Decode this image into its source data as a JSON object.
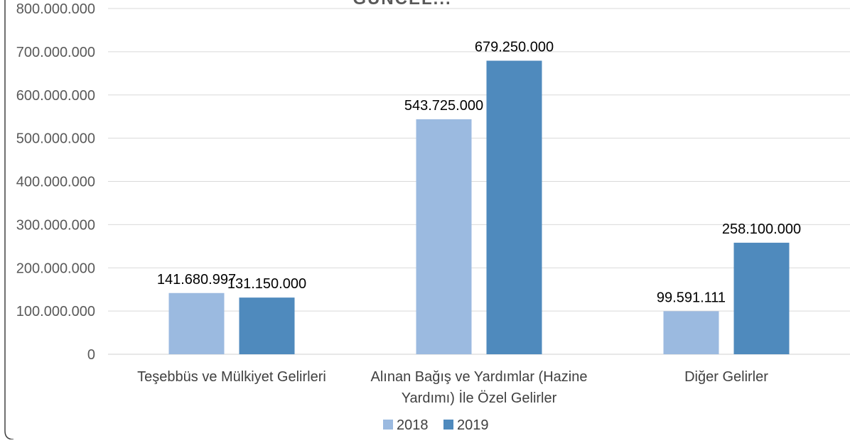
{
  "chart_data": {
    "type": "bar",
    "title": "GÜNCEL...",
    "categories": [
      [
        "Teşebbüs ve Mülkiyet Gelirleri"
      ],
      [
        "Alınan Bağış ve Yardımlar  (Hazine",
        "Yardımı) İle Özel Gelirler"
      ],
      [
        "Diğer Gelirler"
      ]
    ],
    "series": [
      {
        "name": "2018",
        "color": "#9bbae0",
        "values": [
          141680997,
          543725000,
          99591111
        ],
        "labels": [
          "141.680.997",
          "543.725.000",
          "99.591.111"
        ]
      },
      {
        "name": "2019",
        "color": "#4f8abd",
        "values": [
          131150000,
          679250000,
          258100000
        ],
        "labels": [
          "131.150.000",
          "679.250.000",
          "258.100.000"
        ]
      }
    ],
    "ylim": [
      0,
      800000000
    ],
    "yticks": [
      0,
      100000000,
      200000000,
      300000000,
      400000000,
      500000000,
      600000000,
      700000000,
      800000000
    ],
    "ytick_labels": [
      "0",
      "100.000.000",
      "200.000.000",
      "300.000.000",
      "400.000.000",
      "500.000.000",
      "600.000.000",
      "700.000.000",
      "800.000.000"
    ],
    "grid": true,
    "legend_position": "bottom-center",
    "xlabel": "",
    "ylabel": ""
  }
}
